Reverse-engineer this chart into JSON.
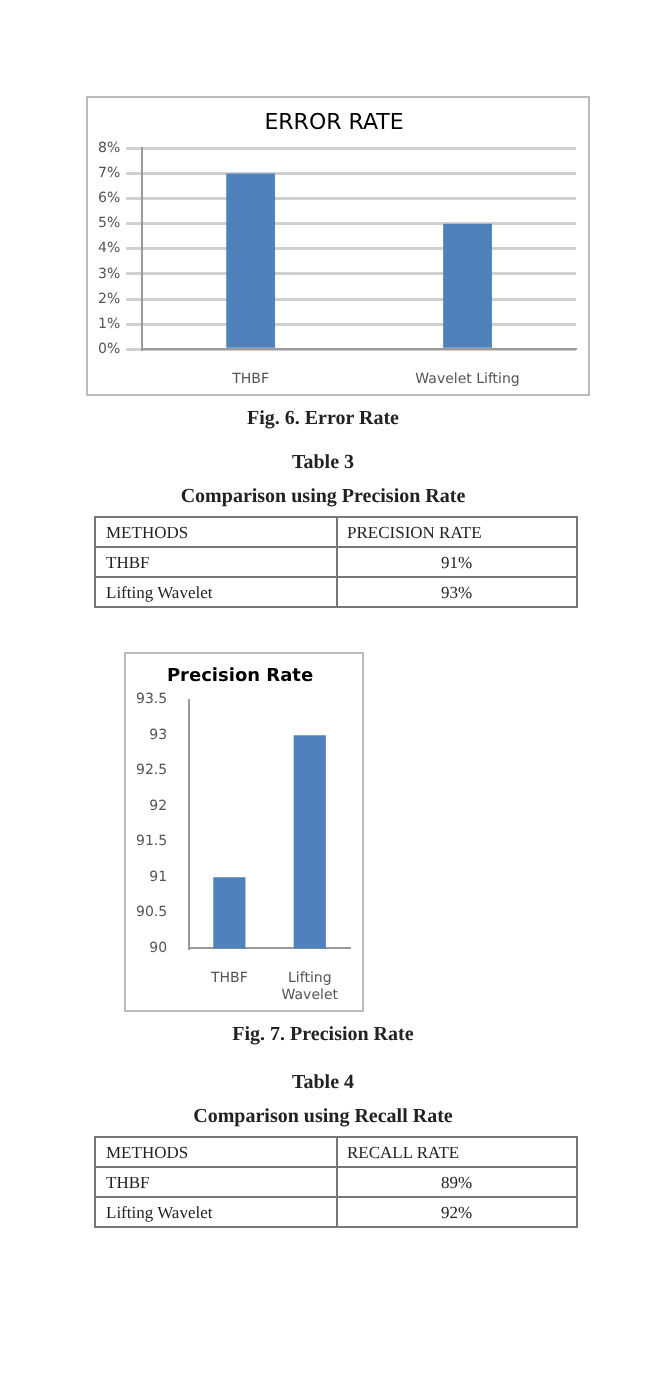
{
  "chart_data": [
    {
      "type": "bar",
      "title": "ERROR RATE",
      "categories": [
        "THBF",
        "Wavelet Lifting"
      ],
      "values": [
        7,
        5
      ],
      "color": "#4f81bd",
      "ylim": [
        0,
        8
      ],
      "yticks": [
        {
          "value": 0,
          "label": "0%"
        },
        {
          "value": 1,
          "label": "1%"
        },
        {
          "value": 2,
          "label": "2%"
        },
        {
          "value": 3,
          "label": "3%"
        },
        {
          "value": 4,
          "label": "4%"
        },
        {
          "value": 5,
          "label": "5%"
        },
        {
          "value": 6,
          "label": "6%"
        },
        {
          "value": 7,
          "label": "7%"
        },
        {
          "value": 8,
          "label": "8%"
        }
      ],
      "grid": "y",
      "legend": false,
      "annotations": [
        "Fig. 6. Error Rate"
      ]
    },
    {
      "type": "other",
      "subtitle": "Table 3",
      "title": "Comparison using Precision Rate",
      "annotations": [
        "METHODS",
        "PRECISION RATE",
        "THBF",
        "91%",
        "Lifting Wavelet",
        "93%"
      ]
    },
    {
      "type": "bar",
      "title": "Precision Rate",
      "categories": [
        "THBF",
        "Lifting Wavelet"
      ],
      "values": [
        91,
        93
      ],
      "color": "#4f81bd",
      "ylim": [
        90,
        93.5
      ],
      "yticks": [
        90,
        90.5,
        91,
        91.5,
        92,
        92.5,
        93,
        93.5
      ],
      "grid": false,
      "legend": false,
      "annotations": [
        "Fig. 7. Precision Rate"
      ]
    },
    {
      "type": "other",
      "subtitle": "Table 4",
      "title": "Comparison using Recall Rate",
      "annotations": [
        "METHODS",
        "RECALL RATE",
        "THBF",
        "89%",
        "Lifting Wavelet",
        "92%"
      ]
    }
  ]
}
